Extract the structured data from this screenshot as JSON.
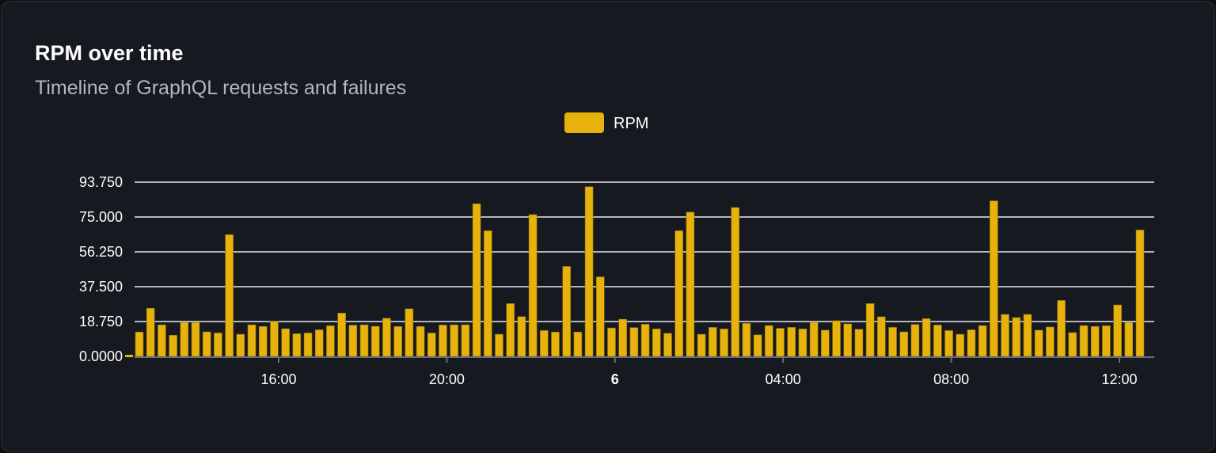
{
  "header": {
    "title": "RPM over time",
    "subtitle": "Timeline of GraphQL requests and failures"
  },
  "chart_data": {
    "type": "bar",
    "title": "RPM over time",
    "subtitle": "Timeline of GraphQL requests and failures",
    "xlabel": "",
    "ylabel": "",
    "ylim": [
      0,
      93.75
    ],
    "yticks": [
      "0.0000",
      "18.750",
      "37.500",
      "56.250",
      "75.000",
      "93.750"
    ],
    "xticks": [
      {
        "label": "16:00",
        "at": "16:00",
        "bold": false
      },
      {
        "label": "20:00",
        "at": "20:00",
        "bold": false
      },
      {
        "label": "6",
        "at": "00:00",
        "bold": true
      },
      {
        "label": "04:00",
        "at": "04:00",
        "bold": false
      },
      {
        "label": "08:00",
        "at": "08:00",
        "bold": false
      },
      {
        "label": "12:00",
        "at": "12:00",
        "bold": false
      }
    ],
    "grid": true,
    "legend": {
      "position": "top-center",
      "entries": [
        "RPM"
      ]
    },
    "colors": {
      "RPM": "#e8b20c",
      "grid": "#e6e9f0",
      "axis": "#6b6e74",
      "background": "#16191f"
    },
    "x": [
      "12:40",
      "12:56",
      "13:12",
      "13:28",
      "13:44",
      "14:00",
      "14:16",
      "14:32",
      "14:48",
      "15:04",
      "15:20",
      "15:36",
      "15:52",
      "16:08",
      "16:24",
      "16:40",
      "16:56",
      "17:12",
      "17:28",
      "17:44",
      "18:00",
      "18:16",
      "18:32",
      "18:48",
      "19:04",
      "19:20",
      "19:36",
      "19:52",
      "20:08",
      "20:24",
      "20:40",
      "20:56",
      "21:12",
      "21:28",
      "21:44",
      "22:00",
      "22:16",
      "22:32",
      "22:48",
      "23:04",
      "23:20",
      "23:36",
      "23:52",
      "00:08",
      "00:24",
      "00:40",
      "00:56",
      "01:12",
      "01:28",
      "01:44",
      "02:00",
      "02:16",
      "02:32",
      "02:48",
      "03:04",
      "03:20",
      "03:36",
      "03:52",
      "04:08",
      "04:24",
      "04:40",
      "04:56",
      "05:12",
      "05:28",
      "05:44",
      "06:00",
      "06:16",
      "06:32",
      "06:48",
      "07:04",
      "07:20",
      "07:36",
      "07:52",
      "08:08",
      "08:24",
      "08:40",
      "08:56",
      "09:12",
      "09:28",
      "09:44",
      "10:00",
      "10:16",
      "10:32",
      "10:48",
      "11:04",
      "11:20",
      "11:36",
      "11:52",
      "12:08",
      "12:24"
    ],
    "series": [
      {
        "name": "RPM",
        "values": [
          13.1,
          25.9,
          17.0,
          11.4,
          18.2,
          18.2,
          13.2,
          12.6,
          65.5,
          11.9,
          17.0,
          16.1,
          18.9,
          14.9,
          12.2,
          12.6,
          14.3,
          16.5,
          23.3,
          16.8,
          17.0,
          16.2,
          20.5,
          16.1,
          25.6,
          16.1,
          12.6,
          16.9,
          17.0,
          17.0,
          82.1,
          67.6,
          11.9,
          28.4,
          21.4,
          76.3,
          13.9,
          13.1,
          48.4,
          13.1,
          91.3,
          42.8,
          15.3,
          20.0,
          15.5,
          17.3,
          14.8,
          12.4,
          67.6,
          77.6,
          11.9,
          15.6,
          14.8,
          80.1,
          17.8,
          11.6,
          16.6,
          15.1,
          15.6,
          14.8,
          18.3,
          14.1,
          19.2,
          17.5,
          14.6,
          28.4,
          21.3,
          15.6,
          13.2,
          17.2,
          20.3,
          16.9,
          13.9,
          11.9,
          14.3,
          16.6,
          83.7,
          22.6,
          20.9,
          22.6,
          14.1,
          15.8,
          30.1,
          12.8,
          16.6,
          16.1,
          16.5,
          27.7,
          18.2,
          68.0
        ]
      }
    ]
  }
}
